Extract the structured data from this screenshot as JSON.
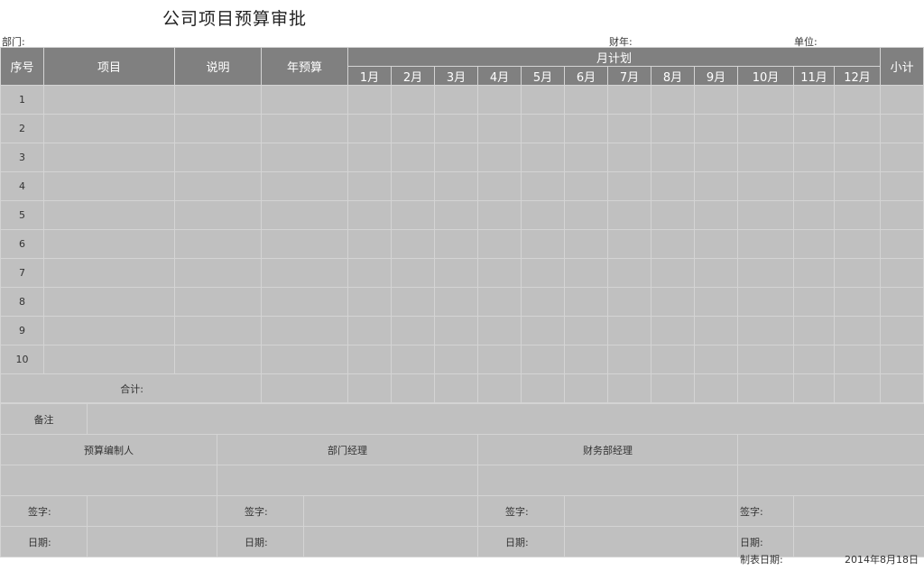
{
  "title": "公司项目预算审批",
  "meta": {
    "department": "部门:",
    "fiscal_year": "财年:",
    "unit": "单位:"
  },
  "table": {
    "headers": {
      "seq": "序号",
      "project": "项目",
      "description": "说明",
      "annual_budget": "年预算",
      "monthly_plan": "月计划",
      "subtotal": "小计"
    },
    "months": [
      "1月",
      "2月",
      "3月",
      "4月",
      "5月",
      "6月",
      "7月",
      "8月",
      "9月",
      "10月",
      "11月",
      "12月"
    ],
    "rows": [
      "1",
      "2",
      "3",
      "4",
      "5",
      "6",
      "7",
      "8",
      "9",
      "10"
    ],
    "total_label": "合计:"
  },
  "remarks_label": "备注",
  "signatures": {
    "preparer": "预算编制人",
    "dept_manager": "部门经理",
    "finance_manager": "财务部经理",
    "sign_label": "签字:",
    "date_label": "日期:"
  },
  "footer": {
    "date_label": "制表日期:",
    "date_value": "2014年8月18日"
  },
  "colors": {
    "header_bg": "#808080",
    "cell_bg": "#c0c0c0",
    "border": "#d4d4d4"
  }
}
